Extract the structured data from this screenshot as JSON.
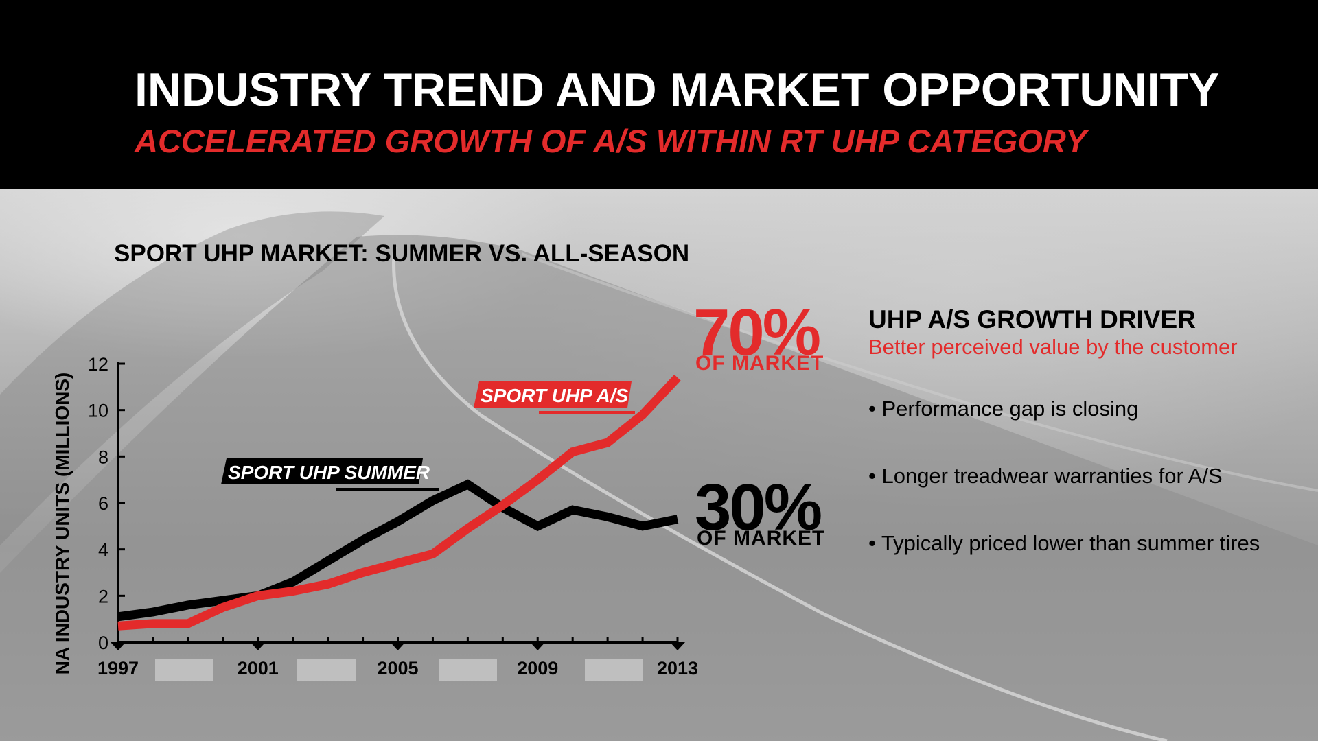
{
  "header": {
    "title": "INDUSTRY TREND AND MARKET OPPORTUNITY",
    "subtitle": "ACCELERATED GROWTH OF A/S WITHIN RT UHP CATEGORY"
  },
  "colors": {
    "accent_red": "#e32b2b",
    "black": "#000000",
    "header_bg": "#000000"
  },
  "chart_data": {
    "type": "line",
    "title": "SPORT UHP MARKET: SUMMER VS. ALL-SEASON",
    "xlabel": "",
    "ylabel": "NA INDUSTRY UNITS (MILLIONS)",
    "xlim": [
      1997,
      2013
    ],
    "ylim": [
      0,
      12
    ],
    "x_ticks": [
      "1997",
      "2001",
      "2005",
      "2009",
      "2013"
    ],
    "y_ticks": [
      "0",
      "2",
      "4",
      "6",
      "8",
      "10",
      "12"
    ],
    "grid": false,
    "x": [
      1997,
      1998,
      1999,
      2000,
      2001,
      2002,
      2003,
      2004,
      2005,
      2006,
      2007,
      2008,
      2009,
      2010,
      2011,
      2012,
      2013
    ],
    "series": [
      {
        "name": "SPORT UHP SUMMER",
        "color": "#000000",
        "values": [
          1.1,
          1.3,
          1.6,
          1.8,
          2.0,
          2.6,
          3.5,
          4.4,
          5.2,
          6.1,
          6.8,
          5.8,
          5.0,
          5.7,
          5.4,
          5.0,
          5.3
        ]
      },
      {
        "name": "SPORT UHP A/S",
        "color": "#e32b2b",
        "values": [
          0.7,
          0.8,
          0.8,
          1.5,
          2.0,
          2.2,
          2.5,
          3.0,
          3.4,
          3.8,
          4.9,
          5.9,
          7.0,
          8.2,
          8.6,
          9.8,
          11.4
        ]
      }
    ],
    "annotations": {
      "as_share": {
        "value": "70%",
        "label": "OF MARKET"
      },
      "summer_share": {
        "value": "30%",
        "label": "OF MARKET"
      }
    }
  },
  "driver": {
    "title": "UHP A/S GROWTH DRIVER",
    "subtitle": "Better perceived value by the customer",
    "bullets": [
      "• Performance gap is closing",
      "• Longer treadwear warranties for A/S",
      "• Typically priced lower than summer tires"
    ]
  }
}
